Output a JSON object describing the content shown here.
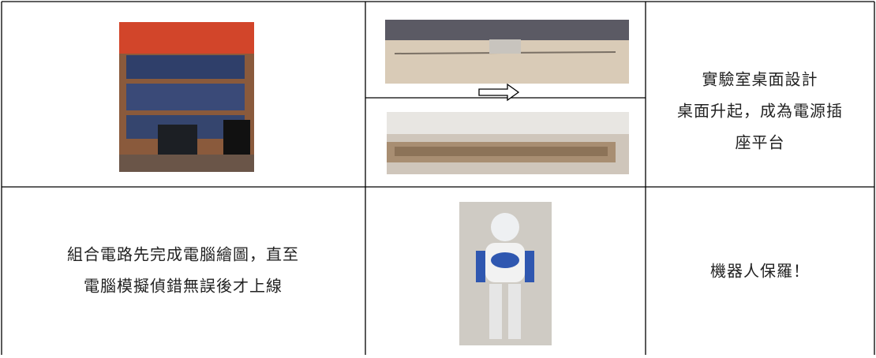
{
  "table": {
    "rows": [
      {
        "right": [
          "實驗室桌面設計",
          "桌面升起，成為電源插",
          "座平台"
        ]
      },
      {
        "left": [
          "組合電路先完成電腦繪圖，直至",
          "電腦模擬偵錯無誤後才上線"
        ],
        "right": [
          "機器人保羅！"
        ]
      }
    ]
  }
}
